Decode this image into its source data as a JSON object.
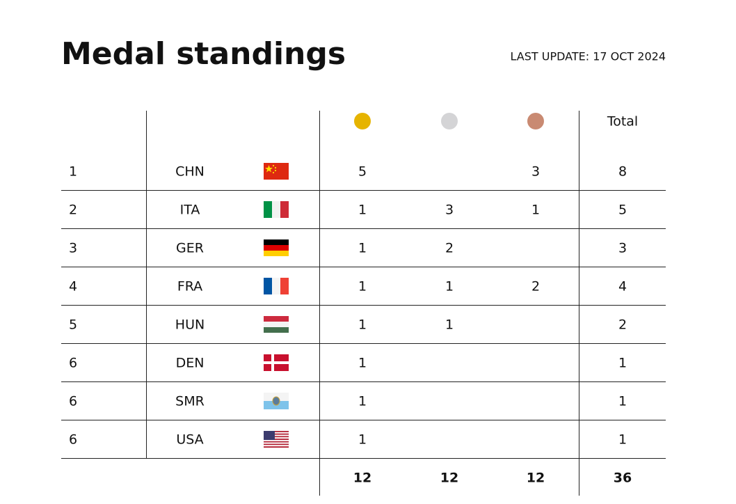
{
  "header": {
    "title": "Medal standings",
    "last_update": "LAST UPDATE: 17 OCT 2024"
  },
  "table": {
    "total_header": "Total",
    "rows": [
      [
        1,
        "CHN",
        5,
        null,
        3,
        8
      ],
      [
        2,
        "ITA",
        1,
        3,
        1,
        5
      ],
      [
        3,
        "GER",
        1,
        2,
        null,
        3
      ],
      [
        4,
        "FRA",
        1,
        1,
        2,
        4
      ],
      [
        5,
        "HUN",
        1,
        1,
        null,
        2
      ],
      [
        6,
        "DEN",
        1,
        null,
        null,
        1
      ],
      [
        6,
        "SMR",
        1,
        null,
        null,
        1
      ],
      [
        6,
        "USA",
        1,
        null,
        null,
        1
      ]
    ],
    "totals": [
      12,
      12,
      12,
      36
    ]
  }
}
